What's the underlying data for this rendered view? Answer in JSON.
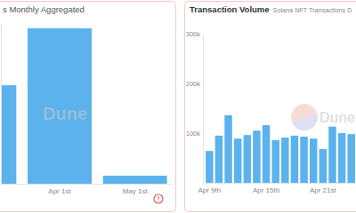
{
  "chart_data": [
    {
      "type": "bar",
      "title": "s Monthly Aggregated",
      "categories": [
        null,
        "Apr 1st",
        "May 1st"
      ],
      "values": [
        1900000,
        3000000,
        155000
      ],
      "color": "#5bb2ec",
      "ylim": [
        0,
        3100000
      ],
      "tick_labels": "x",
      "watermark": "Dune"
    },
    {
      "type": "bar",
      "title": "Transaction Volume",
      "subtitle": "Solana NFT Transactions D",
      "categories": [
        "Apr 9th",
        null,
        null,
        null,
        null,
        null,
        "Apr 15th",
        null,
        null,
        null,
        null,
        null,
        "Apr 21st",
        null,
        null,
        null
      ],
      "values": [
        64000,
        95000,
        136000,
        89000,
        96000,
        105000,
        116000,
        86000,
        91000,
        95000,
        93000,
        89000,
        68000,
        113000,
        100000,
        98000
      ],
      "color": "#5bb2ec",
      "ylim": [
        0,
        300000
      ],
      "yticks": [
        {
          "value": 100000,
          "label": "100k"
        },
        {
          "value": 200000,
          "label": "200k"
        },
        {
          "value": 300000,
          "label": "300k"
        }
      ],
      "grid": false,
      "watermark": "Dune"
    }
  ]
}
